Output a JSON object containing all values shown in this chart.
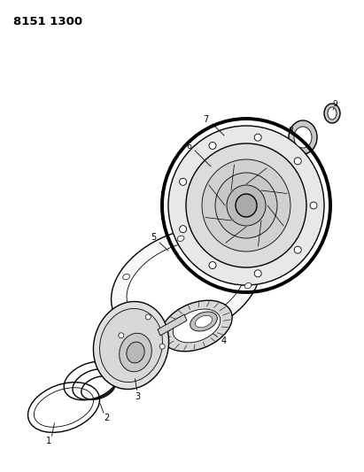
{
  "title_code": "8151 1300",
  "background_color": "#ffffff",
  "line_color": "#000000",
  "fig_width": 4.11,
  "fig_height": 5.33,
  "dpi": 100,
  "lw_thin": 0.6,
  "lw_med": 1.0,
  "lw_thick": 1.8
}
